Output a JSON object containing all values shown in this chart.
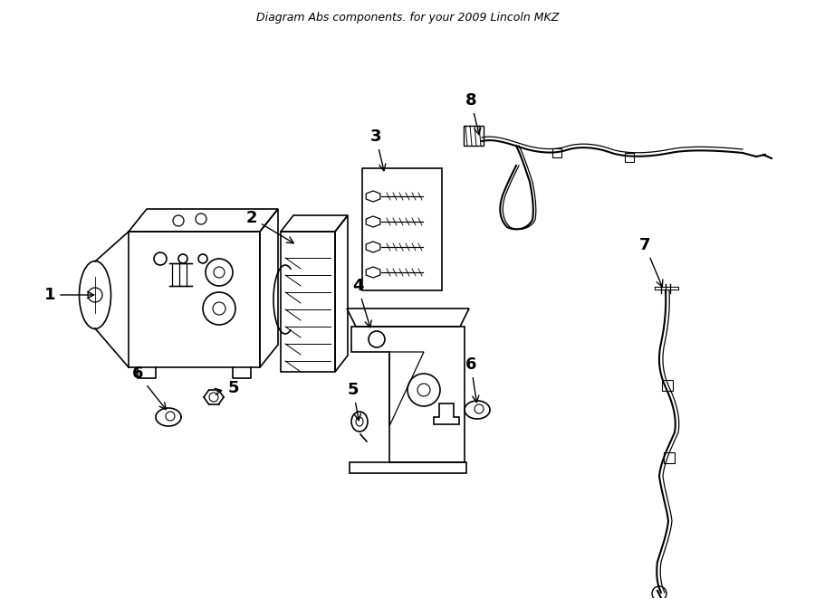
{
  "title": "Diagram Abs components. for your 2009 Lincoln MKZ",
  "bg": "#ffffff",
  "lc": "#000000",
  "lw": 1.2,
  "label_fontsize": 13,
  "title_fontsize": 9,
  "fig_w": 9.0,
  "fig_h": 6.61,
  "dpi": 100
}
